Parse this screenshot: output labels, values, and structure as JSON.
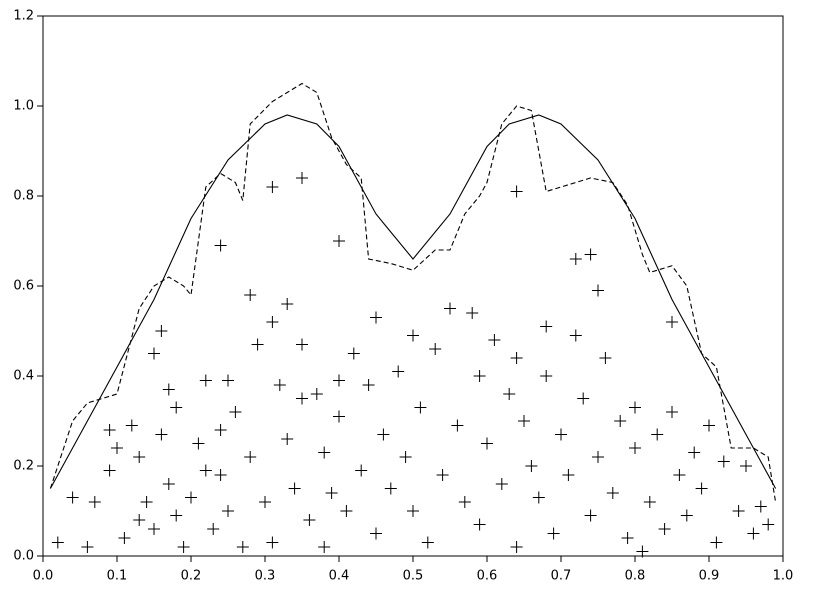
{
  "chart_data": {
    "type": "scatter-line",
    "xlim": [
      0,
      1
    ],
    "ylim": [
      0,
      1.2
    ],
    "xticks": [
      {
        "value": 0,
        "label": "0.0"
      },
      {
        "value": 0.1,
        "label": "0.1"
      },
      {
        "value": 0.2,
        "label": "0.2"
      },
      {
        "value": 0.3,
        "label": "0.3"
      },
      {
        "value": 0.4,
        "label": "0.4"
      },
      {
        "value": 0.5,
        "label": "0.5"
      },
      {
        "value": 0.6,
        "label": "0.6"
      },
      {
        "value": 0.7,
        "label": "0.7"
      },
      {
        "value": 0.8,
        "label": "0.8"
      },
      {
        "value": 0.9,
        "label": "0.9"
      },
      {
        "value": 1,
        "label": "1.0"
      }
    ],
    "yticks": [
      {
        "value": 0,
        "label": "0.0"
      },
      {
        "value": 0.2,
        "label": "0.2"
      },
      {
        "value": 0.4,
        "label": "0.4"
      },
      {
        "value": 0.6,
        "label": "0.6"
      },
      {
        "value": 0.8,
        "label": "0.8"
      },
      {
        "value": 1,
        "label": "1.0"
      },
      {
        "value": 1.2,
        "label": "1.2"
      }
    ],
    "series": [
      {
        "kind": "scatter",
        "color": "#000000",
        "x": [
          0.02,
          0.04,
          0.06,
          0.07,
          0.09,
          0.09,
          0.1,
          0.11,
          0.12,
          0.13,
          0.13,
          0.14,
          0.15,
          0.15,
          0.16,
          0.17,
          0.17,
          0.18,
          0.18,
          0.19,
          0.2,
          0.21,
          0.22,
          0.22,
          0.23,
          0.24,
          0.24,
          0.25,
          0.25,
          0.26,
          0.27,
          0.28,
          0.28,
          0.29,
          0.3,
          0.31,
          0.31,
          0.32,
          0.33,
          0.33,
          0.34,
          0.35,
          0.35,
          0.36,
          0.37,
          0.38,
          0.38,
          0.39,
          0.4,
          0.4,
          0.41,
          0.42,
          0.43,
          0.44,
          0.45,
          0.45,
          0.46,
          0.47,
          0.48,
          0.49,
          0.5,
          0.5,
          0.51,
          0.52,
          0.53,
          0.54,
          0.55,
          0.56,
          0.57,
          0.58,
          0.59,
          0.59,
          0.6,
          0.61,
          0.62,
          0.63,
          0.64,
          0.64,
          0.65,
          0.66,
          0.67,
          0.68,
          0.68,
          0.69,
          0.7,
          0.71,
          0.72,
          0.73,
          0.74,
          0.75,
          0.75,
          0.76,
          0.77,
          0.78,
          0.79,
          0.8,
          0.8,
          0.81,
          0.82,
          0.83,
          0.84,
          0.85,
          0.86,
          0.87,
          0.88,
          0.89,
          0.9,
          0.91,
          0.92,
          0.94,
          0.95,
          0.96,
          0.97,
          0.98,
          0.16,
          0.24,
          0.31,
          0.35,
          0.4,
          0.64,
          0.72,
          0.74,
          0.85
        ],
        "y": [
          0.03,
          0.13,
          0.02,
          0.12,
          0.28,
          0.19,
          0.24,
          0.04,
          0.29,
          0.08,
          0.22,
          0.12,
          0.45,
          0.06,
          0.27,
          0.37,
          0.16,
          0.33,
          0.09,
          0.02,
          0.13,
          0.25,
          0.19,
          0.39,
          0.06,
          0.28,
          0.18,
          0.39,
          0.1,
          0.32,
          0.02,
          0.58,
          0.22,
          0.47,
          0.12,
          0.52,
          0.03,
          0.38,
          0.26,
          0.56,
          0.15,
          0.35,
          0.47,
          0.08,
          0.36,
          0.23,
          0.02,
          0.14,
          0.31,
          0.39,
          0.1,
          0.45,
          0.19,
          0.38,
          0.53,
          0.05,
          0.27,
          0.15,
          0.41,
          0.22,
          0.49,
          0.1,
          0.33,
          0.03,
          0.46,
          0.18,
          0.55,
          0.29,
          0.12,
          0.54,
          0.4,
          0.07,
          0.25,
          0.48,
          0.16,
          0.36,
          0.44,
          0.02,
          0.3,
          0.2,
          0.13,
          0.51,
          0.4,
          0.05,
          0.27,
          0.18,
          0.49,
          0.35,
          0.09,
          0.59,
          0.22,
          0.44,
          0.14,
          0.3,
          0.04,
          0.24,
          0.33,
          0.01,
          0.12,
          0.27,
          0.06,
          0.32,
          0.18,
          0.09,
          0.23,
          0.15,
          0.29,
          0.03,
          0.21,
          0.1,
          0.2,
          0.05,
          0.11,
          0.07,
          0.5,
          0.69,
          0.82,
          0.84,
          0.7,
          0.81,
          0.66,
          0.67,
          0.52
        ]
      },
      {
        "kind": "line",
        "color": "#000000",
        "dash": false,
        "x": [
          0.01,
          0.05,
          0.1,
          0.15,
          0.2,
          0.25,
          0.3,
          0.33,
          0.37,
          0.4,
          0.45,
          0.5,
          0.55,
          0.6,
          0.63,
          0.67,
          0.7,
          0.75,
          0.8,
          0.85,
          0.9,
          0.95,
          0.99
        ],
        "y": [
          0.15,
          0.27,
          0.42,
          0.57,
          0.75,
          0.88,
          0.96,
          0.98,
          0.96,
          0.91,
          0.76,
          0.66,
          0.76,
          0.91,
          0.96,
          0.98,
          0.96,
          0.88,
          0.75,
          0.57,
          0.42,
          0.27,
          0.15
        ]
      },
      {
        "kind": "line",
        "color": "#000000",
        "dash": true,
        "x": [
          0.01,
          0.04,
          0.06,
          0.1,
          0.13,
          0.15,
          0.17,
          0.19,
          0.2,
          0.22,
          0.24,
          0.26,
          0.27,
          0.28,
          0.31,
          0.33,
          0.35,
          0.37,
          0.39,
          0.41,
          0.43,
          0.44,
          0.47,
          0.5,
          0.53,
          0.55,
          0.57,
          0.59,
          0.6,
          0.62,
          0.64,
          0.66,
          0.68,
          0.7,
          0.74,
          0.77,
          0.79,
          0.81,
          0.82,
          0.85,
          0.87,
          0.89,
          0.91,
          0.93,
          0.96,
          0.98,
          0.99
        ],
        "y": [
          0.15,
          0.3,
          0.34,
          0.36,
          0.55,
          0.6,
          0.62,
          0.6,
          0.58,
          0.82,
          0.85,
          0.83,
          0.79,
          0.96,
          1.01,
          1.03,
          1.05,
          1.03,
          0.93,
          0.87,
          0.84,
          0.66,
          0.65,
          0.635,
          0.68,
          0.68,
          0.76,
          0.8,
          0.83,
          0.96,
          1.0,
          0.99,
          0.81,
          0.82,
          0.84,
          0.83,
          0.78,
          0.67,
          0.63,
          0.645,
          0.6,
          0.45,
          0.42,
          0.24,
          0.24,
          0.22,
          0.12
        ]
      }
    ]
  }
}
